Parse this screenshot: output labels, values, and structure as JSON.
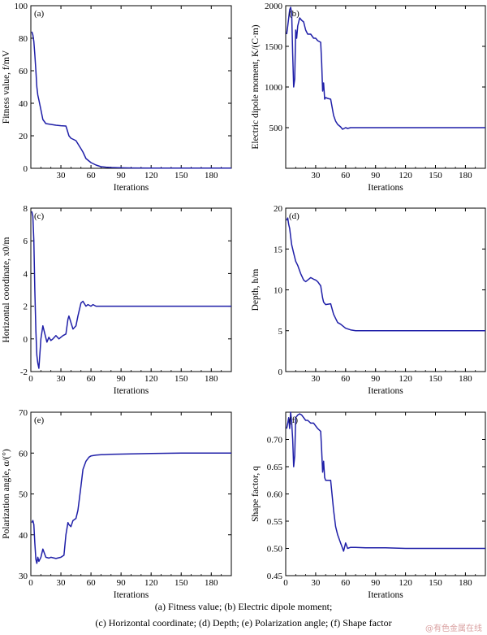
{
  "chart_data": [
    {
      "type": "line",
      "panel_label": "(a)",
      "xlabel": "Iterations",
      "ylabel": "Fitness value, f/mV",
      "xlim": [
        0,
        200
      ],
      "ylim": [
        0,
        100
      ],
      "xticks": [
        30,
        60,
        90,
        120,
        150,
        180
      ],
      "yticks": [
        0,
        20,
        40,
        60,
        80,
        100
      ],
      "color": "#1f1fa8",
      "x": [
        1,
        2,
        3,
        4,
        5,
        6,
        7,
        8,
        10,
        12,
        15,
        20,
        25,
        30,
        35,
        36,
        38,
        40,
        45,
        48,
        50,
        52,
        55,
        58,
        60,
        65,
        70,
        75,
        80,
        90,
        100,
        120,
        150,
        180,
        200
      ],
      "y": [
        84,
        82,
        78,
        70,
        60,
        50,
        45,
        42,
        36,
        30,
        27.5,
        27,
        26.5,
        26.2,
        26,
        24,
        20,
        18.5,
        17,
        14,
        12,
        10,
        6,
        4.5,
        3.5,
        2,
        1,
        0.7,
        0.5,
        0.3,
        0.2,
        0.1,
        0.1,
        0.1,
        0.1
      ]
    },
    {
      "type": "line",
      "panel_label": "(b)",
      "xlabel": "Iterations",
      "ylabel": "Electric dipole moment, K/(C·m)",
      "xlim": [
        0,
        200
      ],
      "ylim": [
        0,
        2000
      ],
      "xticks": [
        30,
        60,
        90,
        120,
        150,
        180
      ],
      "yticks": [
        500,
        1000,
        1500,
        2000
      ],
      "color": "#1f1fa8",
      "x": [
        1,
        2,
        3,
        4,
        5,
        6,
        7,
        8,
        9,
        10,
        11,
        12,
        14,
        16,
        18,
        20,
        22,
        25,
        28,
        30,
        32,
        35,
        36,
        37,
        38,
        39,
        40,
        42,
        45,
        48,
        50,
        52,
        55,
        57,
        60,
        62,
        65,
        70,
        80,
        100,
        120,
        150,
        180,
        200
      ],
      "y": [
        1650,
        1750,
        1850,
        1950,
        1980,
        1900,
        1400,
        1000,
        1100,
        1700,
        1600,
        1750,
        1850,
        1820,
        1800,
        1700,
        1650,
        1650,
        1600,
        1600,
        1570,
        1550,
        1300,
        950,
        1050,
        850,
        870,
        860,
        850,
        650,
        580,
        540,
        510,
        480,
        500,
        490,
        500,
        500,
        500,
        500,
        500,
        500,
        500,
        500
      ]
    },
    {
      "type": "line",
      "panel_label": "(c)",
      "xlabel": "Iterations",
      "ylabel": "Horizontal coordinate, x0/m",
      "xlim": [
        0,
        200
      ],
      "ylim": [
        -2,
        8
      ],
      "xticks": [
        0,
        30,
        60,
        90,
        120,
        150,
        180
      ],
      "yticks": [
        -2,
        0,
        2,
        4,
        6,
        8
      ],
      "color": "#1f1fa8",
      "x": [
        1,
        2,
        3,
        4,
        5,
        6,
        7,
        8,
        10,
        12,
        14,
        16,
        18,
        20,
        22,
        25,
        28,
        30,
        32,
        35,
        37,
        38,
        40,
        42,
        45,
        47,
        50,
        52,
        55,
        57,
        60,
        62,
        65,
        70,
        80,
        100,
        120,
        150,
        180,
        200
      ],
      "y": [
        7.8,
        7.5,
        6,
        3,
        0.5,
        -1,
        -1.5,
        -1.8,
        0,
        0.8,
        0.3,
        -0.2,
        0.1,
        -0.1,
        0,
        0.2,
        0,
        0.1,
        0.2,
        0.3,
        1.2,
        1.4,
        1.0,
        0.6,
        0.8,
        1.4,
        2.2,
        2.3,
        2.0,
        2.1,
        2.0,
        2.1,
        2.0,
        2.0,
        2.0,
        2.0,
        2.0,
        2.0,
        2.0,
        2.0
      ]
    },
    {
      "type": "line",
      "panel_label": "(d)",
      "xlabel": "Iterations",
      "ylabel": "Depth, h/m",
      "xlim": [
        0,
        200
      ],
      "ylim": [
        0,
        20
      ],
      "xticks": [
        30,
        60,
        90,
        120,
        150,
        180
      ],
      "yticks": [
        0,
        5,
        10,
        15,
        20
      ],
      "color": "#1f1fa8",
      "x": [
        1,
        2,
        3,
        4,
        5,
        6,
        8,
        10,
        12,
        15,
        18,
        20,
        22,
        25,
        28,
        30,
        32,
        35,
        37,
        38,
        40,
        45,
        48,
        50,
        52,
        55,
        58,
        60,
        65,
        70,
        80,
        100,
        120,
        150,
        180,
        200
      ],
      "y": [
        18.5,
        18.8,
        18,
        17.5,
        16.5,
        15.5,
        14.5,
        13.5,
        13,
        12,
        11.2,
        11,
        11.2,
        11.5,
        11.3,
        11.2,
        11,
        10.5,
        9,
        8.5,
        8.2,
        8.3,
        7,
        6.5,
        6,
        5.8,
        5.5,
        5.3,
        5.1,
        5.0,
        5.0,
        5.0,
        5.0,
        5.0,
        5.0,
        5.0
      ]
    },
    {
      "type": "line",
      "panel_label": "(e)",
      "xlabel": "Iterations",
      "ylabel": "Polarization angle, α/(°)",
      "xlim": [
        0,
        200
      ],
      "ylim": [
        30,
        70
      ],
      "xticks": [
        0,
        30,
        60,
        90,
        120,
        150,
        180
      ],
      "yticks": [
        30,
        40,
        50,
        60,
        70
      ],
      "color": "#1f1fa8",
      "x": [
        1,
        2,
        3,
        4,
        5,
        6,
        7,
        8,
        10,
        12,
        15,
        18,
        20,
        25,
        30,
        33,
        35,
        37,
        38,
        40,
        42,
        45,
        47,
        48,
        50,
        52,
        55,
        58,
        60,
        65,
        70,
        80,
        100,
        120,
        150,
        180,
        200
      ],
      "y": [
        43,
        43.5,
        42.5,
        38,
        34,
        33,
        34.5,
        33.5,
        34.5,
        36.5,
        34.5,
        34.3,
        34.5,
        34.2,
        34.5,
        35,
        40,
        43,
        42.5,
        42,
        43.5,
        44,
        46,
        48,
        52,
        56,
        58,
        59,
        59.3,
        59.5,
        59.6,
        59.7,
        59.8,
        59.9,
        60,
        60,
        60
      ]
    },
    {
      "type": "line",
      "panel_label": "(f)",
      "xlabel": "Iterations",
      "ylabel": "Shape factor, q",
      "xlim": [
        0,
        200
      ],
      "ylim": [
        0.45,
        0.75
      ],
      "xticks": [
        0,
        30,
        60,
        90,
        120,
        150,
        180
      ],
      "yticks": [
        0.45,
        0.5,
        0.55,
        0.6,
        0.65,
        0.7
      ],
      "color": "#1f1fa8",
      "x": [
        1,
        2,
        3,
        4,
        5,
        6,
        7,
        8,
        9,
        10,
        12,
        14,
        16,
        18,
        20,
        22,
        25,
        28,
        30,
        32,
        35,
        36,
        37,
        38,
        39,
        40,
        42,
        45,
        48,
        50,
        52,
        55,
        57,
        58,
        60,
        62,
        65,
        70,
        80,
        100,
        120,
        150,
        180,
        200
      ],
      "y": [
        0.72,
        0.73,
        0.74,
        0.72,
        0.75,
        0.73,
        0.7,
        0.65,
        0.67,
        0.74,
        0.745,
        0.747,
        0.745,
        0.74,
        0.735,
        0.735,
        0.73,
        0.73,
        0.725,
        0.72,
        0.715,
        0.68,
        0.64,
        0.66,
        0.63,
        0.625,
        0.625,
        0.625,
        0.57,
        0.54,
        0.525,
        0.51,
        0.5,
        0.495,
        0.51,
        0.5,
        0.502,
        0.502,
        0.501,
        0.501,
        0.5,
        0.5,
        0.5,
        0.5
      ]
    }
  ],
  "caption": {
    "line1": "(a) Fitness value; (b) Electric dipole moment;",
    "line2": "(c) Horizontal coordinate; (d) Depth; (e) Polarization angle; (f) Shape factor"
  },
  "watermark": "@有色金属在线"
}
